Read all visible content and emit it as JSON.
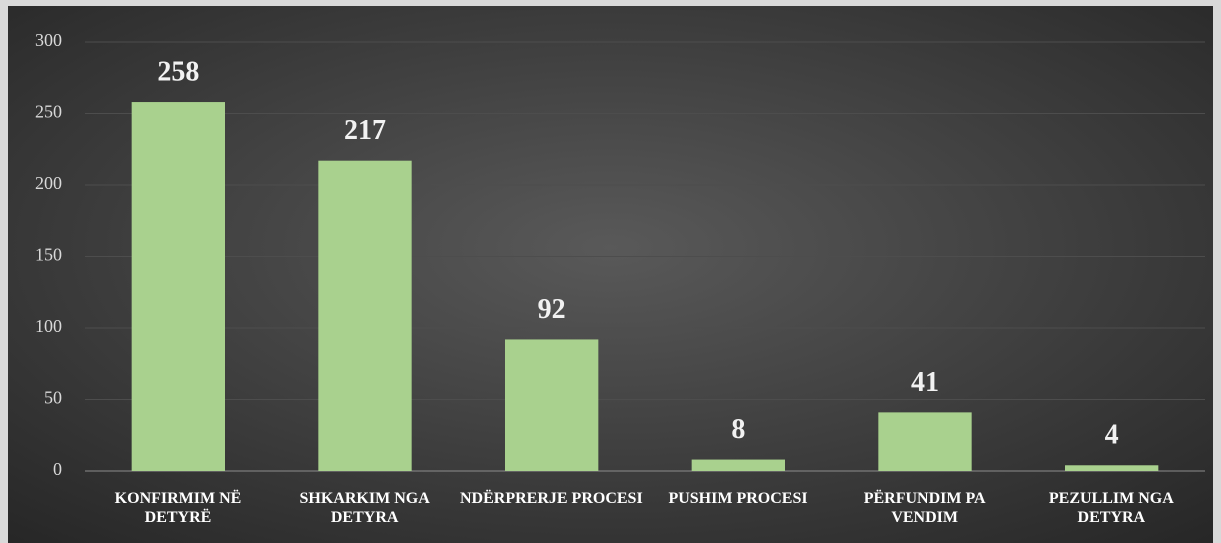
{
  "chart_data": {
    "type": "bar",
    "categories": [
      "KONFIRMIM NË DETYRË",
      "SHKARKIM NGA DETYRA",
      "NDËRPRERJE PROCESI",
      "PUSHIM PROCESI",
      "PËRFUNDIM PA VENDIM",
      "PEZULLIM NGA DETYRA"
    ],
    "values": [
      258,
      217,
      92,
      8,
      41,
      4
    ],
    "color": "#a9d18e",
    "ylim": [
      0,
      300
    ],
    "yticks": [
      0,
      50,
      100,
      150,
      200,
      250,
      300
    ],
    "grid": true
  }
}
